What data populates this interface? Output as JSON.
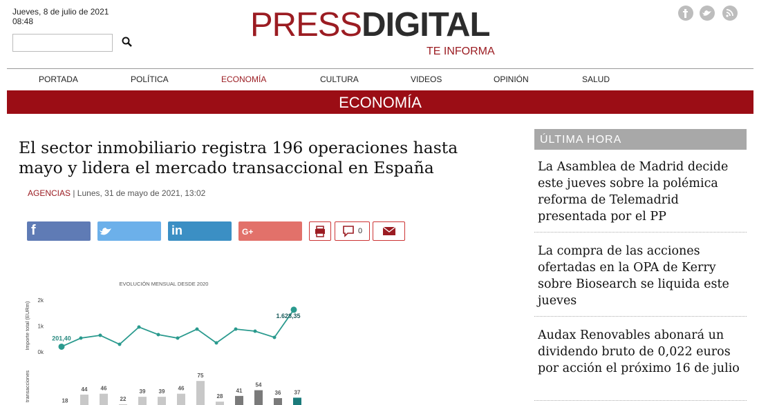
{
  "header": {
    "date": "Jueves, 8 de julio de 2021",
    "time": "08:48",
    "logo_press": "PRESS",
    "logo_digital": "DIGITAL",
    "tagline": "TE INFORMA"
  },
  "nav": [
    "PORTADA",
    "POLÍTICA",
    "ECONOMÍA",
    "CULTURA",
    "VIDEOS",
    "OPINIÓN",
    "SALUD"
  ],
  "section": "ECONOMÍA",
  "article": {
    "title": "El sector inmobiliario registra 196 operaciones hasta mayo y lidera el mercado transaccional en España",
    "source": "AGENCIAS",
    "date": "| Lunes, 31 de mayo de 2021, 13:02",
    "comments": "0"
  },
  "share": {
    "facebook": "f",
    "linkedin": "in",
    "gplus": "G+"
  },
  "chart_data": {
    "type": "line",
    "title": "EVOLUCIÓN MENSUAL DESDE 2020",
    "ylabel": "Importe total (EURm)",
    "y2label": "transacciones",
    "ylim": [
      0,
      2000
    ],
    "yticks": [
      {
        "value": 0,
        "label": "0k"
      },
      {
        "value": 1000,
        "label": "1k"
      },
      {
        "value": 2000,
        "label": "2k"
      }
    ],
    "y2lim": [
      0,
      80
    ],
    "series": [
      {
        "name": "Importe total (EURm)",
        "color": "#2a9a8e",
        "values": [
          201.4,
          533,
          640,
          293,
          960,
          667,
          533,
          880,
          347,
          880,
          800,
          560,
          1628.35
        ],
        "value_labels": [
          "201,40",
          null,
          null,
          null,
          null,
          null,
          null,
          null,
          null,
          null,
          null,
          null,
          "1.628,35"
        ]
      },
      {
        "name": "transacciones",
        "type": "bar",
        "axis": "y2",
        "colors": [
          "#c8c8c8",
          "#c8c8c8",
          "#c8c8c8",
          "#c8c8c8",
          "#c8c8c8",
          "#c8c8c8",
          "#c8c8c8",
          "#c8c8c8",
          "#c8c8c8",
          "#7a7a7a",
          "#7a7a7a",
          "#7a7a7a",
          "#1b7b7b"
        ],
        "values": [
          18,
          44,
          46,
          22,
          39,
          39,
          46,
          75,
          28,
          41,
          54,
          36,
          37
        ]
      }
    ]
  },
  "sidebar": {
    "title": "ÚLTIMA HORA",
    "items": [
      "La Asamblea de Madrid decide este jueves sobre la polémica reforma de Telemadrid presentada por el PP",
      "La compra de las acciones ofertadas en la OPA de Kerry sobre Biosearch se liquida este jueves",
      "Audax Renovables abonará un dividendo bruto de 0,022 euros por acción el próximo 16 de julio"
    ]
  }
}
